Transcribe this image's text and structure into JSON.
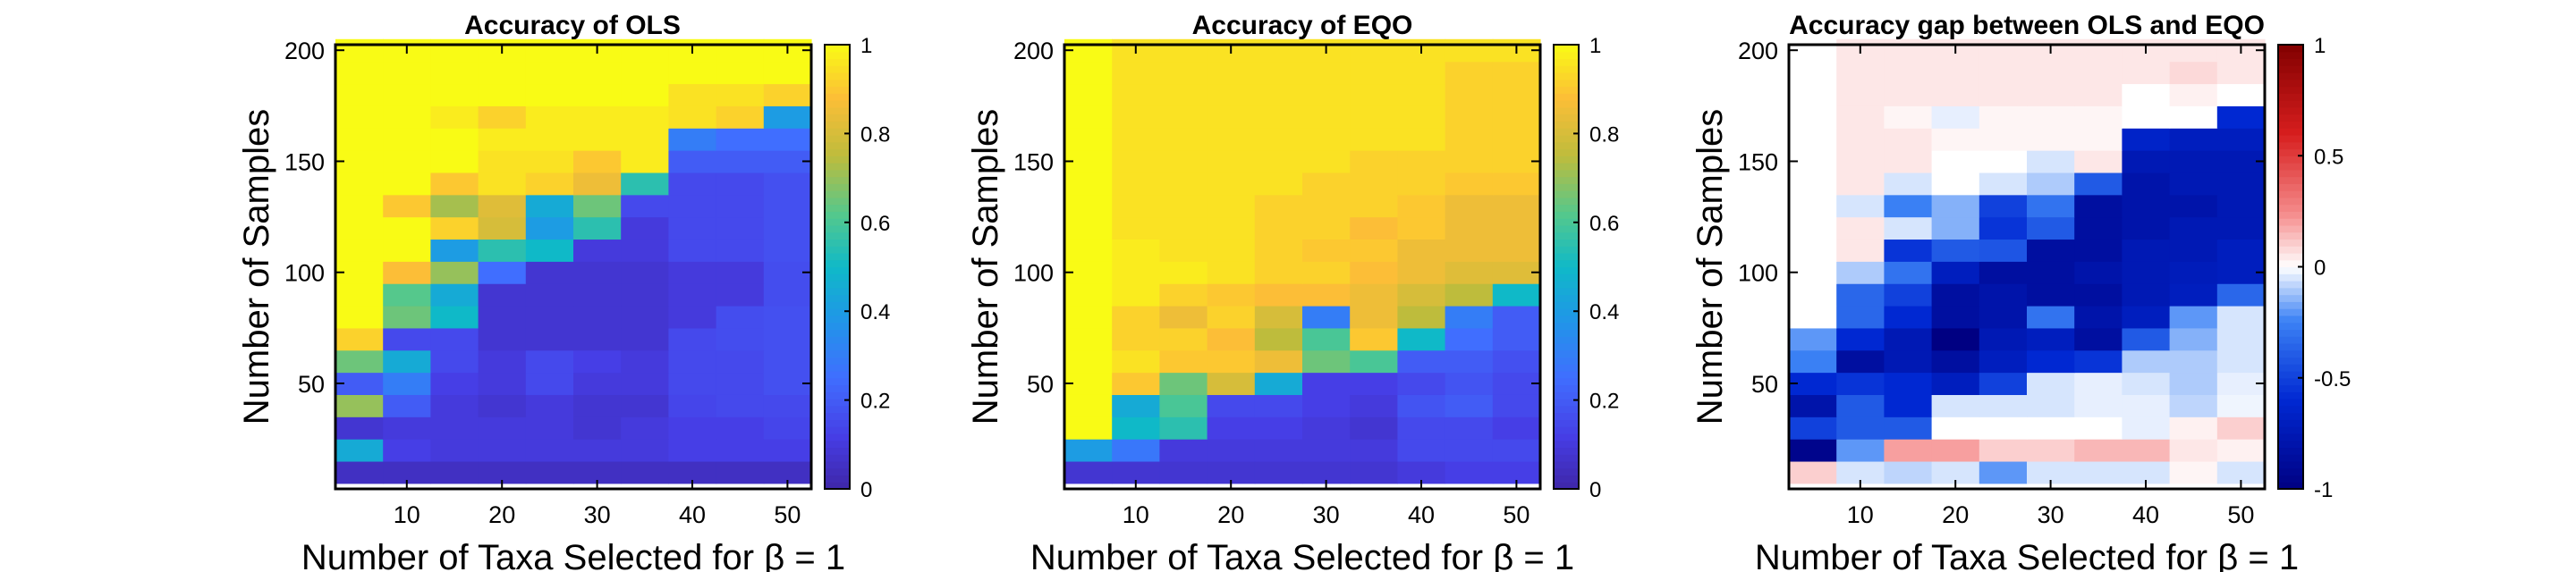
{
  "chart_data": [
    {
      "type": "heatmap",
      "title": "Accuracy of OLS",
      "xlabel": "Number of Taxa Selected for β = 1",
      "ylabel": "Number of Samples",
      "x_ticks": [
        10,
        20,
        30,
        40,
        50
      ],
      "y_ticks": [
        50,
        100,
        150,
        200
      ],
      "xlim": [
        2.5,
        52.5
      ],
      "ylim": [
        2.5,
        202.5
      ],
      "colormap": "parula",
      "colorbar": {
        "limits": [
          0,
          1
        ],
        "ticks": [
          "0",
          "0.2",
          "0.4",
          "0.6",
          "0.8",
          "1"
        ]
      },
      "x_centers": [
        5,
        10,
        15,
        20,
        25,
        30,
        35,
        40,
        45,
        50
      ],
      "y_centers": [
        10,
        20,
        30,
        40,
        50,
        60,
        70,
        80,
        90,
        100,
        110,
        120,
        130,
        140,
        150,
        160,
        170,
        180,
        190,
        200
      ],
      "values": [
        [
          0.05,
          0.05,
          0.05,
          0.05,
          0.05,
          0.05,
          0.05,
          0.05,
          0.05,
          0.05
        ],
        [
          0.45,
          0.12,
          0.1,
          0.1,
          0.1,
          0.1,
          0.1,
          0.12,
          0.12,
          0.12
        ],
        [
          0.08,
          0.1,
          0.1,
          0.1,
          0.1,
          0.08,
          0.1,
          0.12,
          0.12,
          0.14
        ],
        [
          0.7,
          0.2,
          0.1,
          0.08,
          0.1,
          0.08,
          0.08,
          0.14,
          0.15,
          0.15
        ],
        [
          0.2,
          0.3,
          0.12,
          0.1,
          0.15,
          0.1,
          0.1,
          0.15,
          0.15,
          0.17
        ],
        [
          0.65,
          0.45,
          0.15,
          0.1,
          0.15,
          0.12,
          0.1,
          0.15,
          0.15,
          0.17
        ],
        [
          0.92,
          0.15,
          0.15,
          0.08,
          0.08,
          0.08,
          0.08,
          0.15,
          0.16,
          0.17
        ],
        [
          1.0,
          0.65,
          0.5,
          0.08,
          0.08,
          0.08,
          0.08,
          0.1,
          0.16,
          0.17
        ],
        [
          1.0,
          0.62,
          0.45,
          0.08,
          0.08,
          0.08,
          0.08,
          0.1,
          0.1,
          0.16
        ],
        [
          1.0,
          0.88,
          0.7,
          0.25,
          0.08,
          0.08,
          0.08,
          0.1,
          0.1,
          0.16
        ],
        [
          1.0,
          1.0,
          0.4,
          0.55,
          0.5,
          0.1,
          0.1,
          0.15,
          0.15,
          0.17
        ],
        [
          1.0,
          1.0,
          0.92,
          0.8,
          0.4,
          0.55,
          0.1,
          0.15,
          0.15,
          0.17
        ],
        [
          1.0,
          0.9,
          0.72,
          0.82,
          0.45,
          0.65,
          0.15,
          0.15,
          0.15,
          0.17
        ],
        [
          1.0,
          1.0,
          0.9,
          0.95,
          0.92,
          0.85,
          0.55,
          0.15,
          0.15,
          0.17
        ],
        [
          1.0,
          1.0,
          1.0,
          0.95,
          0.95,
          0.9,
          0.97,
          0.2,
          0.2,
          0.2
        ],
        [
          1.0,
          1.0,
          1.0,
          0.97,
          0.97,
          0.97,
          0.97,
          0.3,
          0.25,
          0.25
        ],
        [
          1.0,
          1.0,
          0.97,
          0.92,
          0.97,
          0.97,
          0.97,
          0.95,
          0.92,
          0.4
        ],
        [
          1.0,
          1.0,
          1.0,
          1.0,
          1.0,
          1.0,
          1.0,
          0.95,
          0.95,
          0.92
        ],
        [
          1.0,
          1.0,
          1.0,
          1.0,
          1.0,
          1.0,
          1.0,
          1.0,
          1.0,
          1.0
        ],
        [
          1.0,
          1.0,
          1.0,
          1.0,
          1.0,
          1.0,
          1.0,
          1.0,
          1.0,
          1.0
        ]
      ]
    },
    {
      "type": "heatmap",
      "title": "Accuracy of EQO",
      "xlabel": "Number of Taxa Selected for β = 1",
      "ylabel": "Number of Samples",
      "x_ticks": [
        10,
        20,
        30,
        40,
        50
      ],
      "y_ticks": [
        50,
        100,
        150,
        200
      ],
      "xlim": [
        2.5,
        52.5
      ],
      "ylim": [
        2.5,
        202.5
      ],
      "colormap": "parula",
      "colorbar": {
        "limits": [
          0,
          1
        ],
        "ticks": [
          "0",
          "0.2",
          "0.4",
          "0.6",
          "0.8",
          "1"
        ]
      },
      "x_centers": [
        5,
        10,
        15,
        20,
        25,
        30,
        35,
        40,
        45,
        50
      ],
      "y_centers": [
        10,
        20,
        30,
        40,
        50,
        60,
        70,
        80,
        90,
        100,
        110,
        120,
        130,
        140,
        150,
        160,
        170,
        180,
        190,
        200
      ],
      "values": [
        [
          0.08,
          0.08,
          0.08,
          0.08,
          0.08,
          0.08,
          0.08,
          0.1,
          0.12,
          0.12
        ],
        [
          0.4,
          0.28,
          0.1,
          0.1,
          0.1,
          0.1,
          0.1,
          0.15,
          0.15,
          0.15
        ],
        [
          1.0,
          0.5,
          0.55,
          0.12,
          0.12,
          0.1,
          0.08,
          0.15,
          0.15,
          0.12
        ],
        [
          1.0,
          0.45,
          0.6,
          0.15,
          0.15,
          0.12,
          0.1,
          0.18,
          0.2,
          0.15
        ],
        [
          1.0,
          0.9,
          0.65,
          0.8,
          0.45,
          0.12,
          0.12,
          0.15,
          0.18,
          0.15
        ],
        [
          1.0,
          0.95,
          0.9,
          0.9,
          0.85,
          0.65,
          0.6,
          0.2,
          0.2,
          0.17
        ],
        [
          1.0,
          0.92,
          0.92,
          0.88,
          0.75,
          0.6,
          0.9,
          0.5,
          0.25,
          0.2
        ],
        [
          1.0,
          0.92,
          0.85,
          0.92,
          0.8,
          0.3,
          0.85,
          0.75,
          0.3,
          0.2
        ],
        [
          1.0,
          0.97,
          0.92,
          0.9,
          0.88,
          0.88,
          0.85,
          0.8,
          0.75,
          0.5
        ],
        [
          1.0,
          0.97,
          0.97,
          0.95,
          0.92,
          0.92,
          0.88,
          0.85,
          0.82,
          0.82
        ],
        [
          1.0,
          0.97,
          0.95,
          0.95,
          0.92,
          0.9,
          0.9,
          0.85,
          0.85,
          0.85
        ],
        [
          1.0,
          0.95,
          0.95,
          0.95,
          0.92,
          0.92,
          0.88,
          0.9,
          0.85,
          0.85
        ],
        [
          1.0,
          0.95,
          0.95,
          0.95,
          0.92,
          0.92,
          0.92,
          0.9,
          0.85,
          0.85
        ],
        [
          1.0,
          0.95,
          0.95,
          0.95,
          0.95,
          0.92,
          0.92,
          0.92,
          0.9,
          0.9
        ],
        [
          1.0,
          0.95,
          0.95,
          0.95,
          0.95,
          0.95,
          0.92,
          0.92,
          0.92,
          0.92
        ],
        [
          1.0,
          0.95,
          0.95,
          0.95,
          0.95,
          0.95,
          0.95,
          0.95,
          0.92,
          0.92
        ],
        [
          1.0,
          0.95,
          0.95,
          0.95,
          0.95,
          0.95,
          0.95,
          0.95,
          0.92,
          0.92
        ],
        [
          1.0,
          0.95,
          0.95,
          0.95,
          0.95,
          0.95,
          0.95,
          0.95,
          0.92,
          0.92
        ],
        [
          1.0,
          0.95,
          0.95,
          0.95,
          0.95,
          0.95,
          0.95,
          0.95,
          0.92,
          0.92
        ],
        [
          1.0,
          0.95,
          0.95,
          0.95,
          0.95,
          0.95,
          0.95,
          0.95,
          0.95,
          0.95
        ]
      ]
    },
    {
      "type": "heatmap",
      "title": "Accuracy gap between OLS and EQO",
      "xlabel": "Number of Taxa Selected for β = 1",
      "ylabel": "Number of Samples",
      "x_ticks": [
        10,
        20,
        30,
        40,
        50
      ],
      "y_ticks": [
        50,
        100,
        150,
        200
      ],
      "xlim": [
        2.5,
        52.5
      ],
      "ylim": [
        2.5,
        202.5
      ],
      "colormap": "blue-white-red",
      "colorbar": {
        "limits": [
          -1,
          1
        ],
        "ticks": [
          "-1",
          "-0.5",
          "0",
          "0.5",
          "1"
        ]
      },
      "x_centers": [
        5,
        10,
        15,
        20,
        25,
        30,
        35,
        40,
        45,
        50
      ],
      "y_centers": [
        10,
        20,
        30,
        40,
        50,
        60,
        70,
        80,
        90,
        100,
        110,
        120,
        130,
        140,
        150,
        160,
        170,
        180,
        190,
        200
      ],
      "values": [
        [
          0.1,
          -0.05,
          -0.08,
          -0.05,
          -0.2,
          -0.05,
          -0.05,
          -0.05,
          0.02,
          -0.05
        ],
        [
          -0.95,
          -0.2,
          0.2,
          0.2,
          0.1,
          0.1,
          0.15,
          0.15,
          0.05,
          0.03
        ],
        [
          -0.5,
          -0.4,
          -0.4,
          0.0,
          0.0,
          0.0,
          0.0,
          -0.03,
          0.03,
          0.1
        ],
        [
          -0.8,
          -0.4,
          -0.6,
          -0.05,
          -0.05,
          -0.05,
          -0.03,
          -0.03,
          -0.08,
          -0.02
        ],
        [
          -0.6,
          -0.55,
          -0.6,
          -0.7,
          -0.5,
          -0.05,
          -0.03,
          -0.05,
          -0.1,
          -0.03
        ],
        [
          -0.25,
          -0.85,
          -0.75,
          -0.85,
          -0.7,
          -0.6,
          -0.55,
          -0.1,
          -0.1,
          -0.05
        ],
        [
          -0.2,
          -0.6,
          -0.75,
          -1.0,
          -0.75,
          -0.7,
          -0.85,
          -0.4,
          -0.15,
          -0.05
        ],
        [
          0.0,
          -0.35,
          -0.6,
          -0.85,
          -0.8,
          -0.3,
          -0.8,
          -0.7,
          -0.2,
          -0.05
        ],
        [
          0.0,
          -0.35,
          -0.5,
          -0.85,
          -0.8,
          -0.85,
          -0.85,
          -0.75,
          -0.7,
          -0.35
        ],
        [
          0.0,
          -0.1,
          -0.3,
          -0.7,
          -0.85,
          -0.85,
          -0.8,
          -0.75,
          -0.72,
          -0.7
        ],
        [
          0.0,
          0.05,
          -0.55,
          -0.4,
          -0.42,
          -0.85,
          -0.85,
          -0.75,
          -0.75,
          -0.7
        ],
        [
          0.0,
          0.05,
          -0.05,
          -0.15,
          -0.55,
          -0.4,
          -0.85,
          -0.8,
          -0.75,
          -0.75
        ],
        [
          0.0,
          -0.05,
          -0.25,
          -0.15,
          -0.5,
          -0.3,
          -0.85,
          -0.8,
          -0.8,
          -0.75
        ],
        [
          0.0,
          0.05,
          -0.05,
          0.0,
          -0.05,
          -0.1,
          -0.4,
          -0.8,
          -0.75,
          -0.75
        ],
        [
          0.0,
          0.05,
          0.05,
          0.0,
          0.0,
          -0.05,
          0.05,
          -0.75,
          -0.75,
          -0.75
        ],
        [
          0.0,
          0.05,
          0.05,
          0.02,
          0.02,
          0.02,
          0.02,
          -0.65,
          -0.7,
          -0.7
        ],
        [
          0.0,
          0.05,
          0.02,
          -0.03,
          0.02,
          0.02,
          0.02,
          0.0,
          0.0,
          -0.6
        ],
        [
          0.0,
          0.05,
          0.05,
          0.05,
          0.05,
          0.05,
          0.05,
          0.0,
          0.03,
          0.0
        ],
        [
          0.0,
          0.05,
          0.05,
          0.05,
          0.05,
          0.05,
          0.05,
          0.05,
          0.08,
          0.05
        ],
        [
          0.0,
          0.05,
          0.05,
          0.05,
          0.05,
          0.05,
          0.05,
          0.05,
          0.05,
          0.05
        ]
      ]
    }
  ]
}
